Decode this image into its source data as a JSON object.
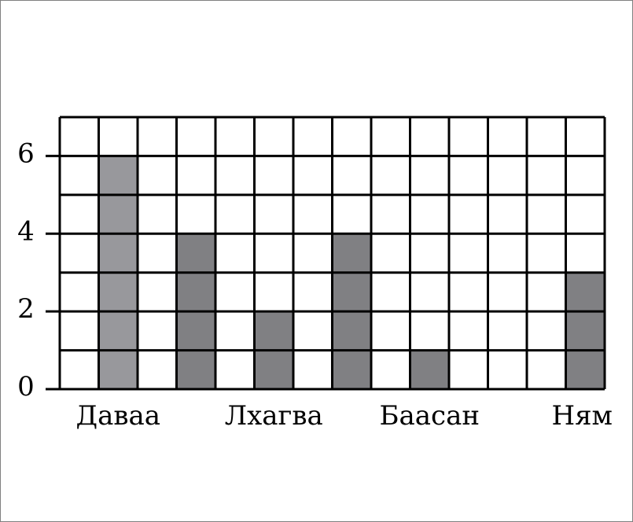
{
  "chart_data": {
    "type": "bar",
    "title": "",
    "xlabel": "",
    "ylabel": "",
    "ylim": [
      0,
      7
    ],
    "yticks": [
      0,
      2,
      4,
      6
    ],
    "grid": true,
    "columns": 14,
    "categories": [
      "Даваа",
      "Лхагва",
      "Баасан",
      "Ням"
    ],
    "bars": [
      {
        "column": 1,
        "value": 6,
        "color": "#98989c"
      },
      {
        "column": 3,
        "value": 4,
        "color": "#808083"
      },
      {
        "column": 5,
        "value": 2,
        "color": "#808083"
      },
      {
        "column": 7,
        "value": 4,
        "color": "#808083"
      },
      {
        "column": 9,
        "value": 1,
        "color": "#808083"
      },
      {
        "column": 13,
        "value": 3,
        "color": "#808083"
      }
    ],
    "category_columns": [
      1,
      5,
      9,
      13
    ]
  }
}
